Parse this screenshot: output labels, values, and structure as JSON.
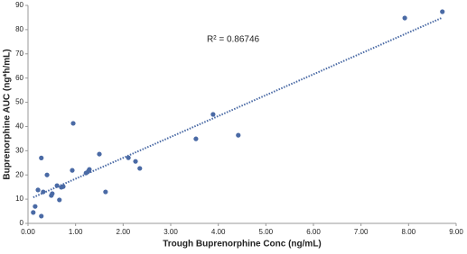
{
  "chart_data": {
    "type": "scatter",
    "xlabel": "Trough Buprenorphine  Conc (ng/mL)",
    "ylabel": "Buprenorphine  AUC (ng*h/mL)",
    "annotation": "R² = 0.86746",
    "trendline": true,
    "color": "#4a6aa5",
    "x": [
      0.11,
      0.15,
      0.21,
      0.28,
      0.28,
      0.32,
      0.4,
      0.49,
      0.51,
      0.61,
      0.66,
      0.7,
      0.74,
      0.93,
      0.95,
      1.22,
      1.27,
      1.29,
      1.5,
      1.63,
      2.11,
      2.26,
      2.35,
      3.53,
      3.89,
      4.42,
      7.92,
      8.71
    ],
    "values": [
      4.5,
      7,
      13.8,
      27,
      3,
      13,
      20,
      11.5,
      12.3,
      15.6,
      9.7,
      14.9,
      15.2,
      21.9,
      41.3,
      20.8,
      21.6,
      22.3,
      28.6,
      13,
      27.1,
      25.6,
      22.7,
      34.9,
      45,
      36.4,
      84.8,
      87.4
    ],
    "xlim": [
      0,
      9
    ],
    "xticks": [
      {
        "value": 0,
        "label": "0.00"
      },
      {
        "value": 1,
        "label": "1.00"
      },
      {
        "value": 2,
        "label": "2.00"
      },
      {
        "value": 3,
        "label": "3.00"
      },
      {
        "value": 4,
        "label": "4.00"
      },
      {
        "value": 5,
        "label": "5.00"
      },
      {
        "value": 6,
        "label": "6.00"
      },
      {
        "value": 7,
        "label": "7.00"
      },
      {
        "value": 8,
        "label": "8.00"
      },
      {
        "value": 9,
        "label": "9.00"
      }
    ],
    "ylim": [
      0,
      90
    ],
    "yticks": [
      0,
      10,
      20,
      30,
      40,
      50,
      60,
      70,
      80,
      90
    ]
  }
}
